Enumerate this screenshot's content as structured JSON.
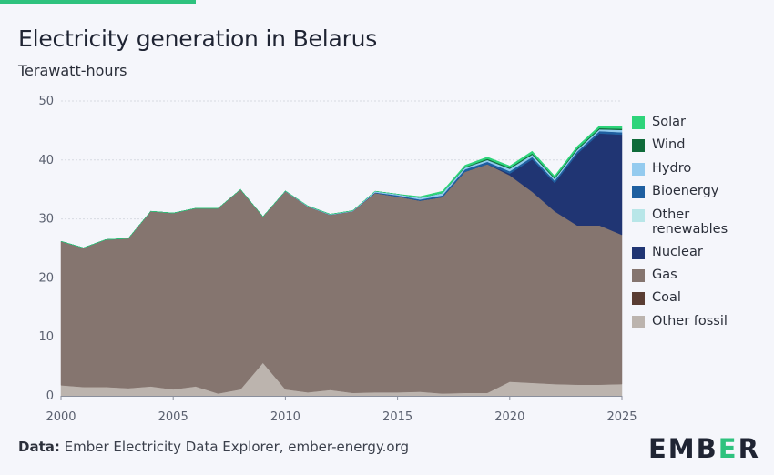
{
  "title": "Electricity generation in Belarus",
  "subtitle": "Terawatt-hours",
  "footer": {
    "label": "Data:",
    "text": "Ember Electricity Data Explorer, ember-energy.org"
  },
  "logo": {
    "text_left": "EMB",
    "text_accent": "E",
    "text_right": "R"
  },
  "chart_data": {
    "type": "area",
    "stacked": true,
    "x": [
      2000,
      2001,
      2002,
      2003,
      2004,
      2005,
      2006,
      2007,
      2008,
      2009,
      2010,
      2011,
      2012,
      2013,
      2014,
      2015,
      2016,
      2017,
      2018,
      2019,
      2020,
      2021,
      2022,
      2023,
      2024,
      2025
    ],
    "xticks": [
      "2000",
      "2005",
      "2010",
      "2015",
      "2020",
      "2025"
    ],
    "yticks": [
      "0",
      "10",
      "20",
      "30",
      "40",
      "50"
    ],
    "ylim": [
      0,
      50
    ],
    "grid": true,
    "legend_position": "right",
    "series": [
      {
        "name": "Other fossil",
        "color": "#bcb4ae",
        "values": [
          1.8,
          1.5,
          1.5,
          1.3,
          1.6,
          1.1,
          1.6,
          0.4,
          1.1,
          5.6,
          1.1,
          0.6,
          1.0,
          0.5,
          0.6,
          0.6,
          0.7,
          0.4,
          0.5,
          0.5,
          2.4,
          2.2,
          2.0,
          1.9,
          1.9,
          2.0
        ]
      },
      {
        "name": "Coal",
        "color": "#5a3d33",
        "values": [
          0,
          0,
          0,
          0,
          0,
          0,
          0,
          0,
          0,
          0,
          0,
          0,
          0,
          0,
          0,
          0,
          0,
          0,
          0,
          0,
          0,
          0,
          0,
          0,
          0,
          0
        ]
      },
      {
        "name": "Gas",
        "color": "#85756f",
        "values": [
          24.4,
          23.6,
          25.0,
          25.4,
          29.7,
          29.9,
          30.2,
          31.4,
          33.9,
          24.8,
          33.6,
          31.5,
          29.7,
          30.8,
          33.8,
          33.2,
          32.4,
          33.3,
          37.5,
          38.8,
          35.0,
          32.4,
          29.3,
          27.0,
          27.0,
          25.3
        ]
      },
      {
        "name": "Other renewables",
        "color": "#b8e6e8",
        "values": [
          0,
          0,
          0,
          0,
          0,
          0,
          0,
          0,
          0,
          0,
          0,
          0,
          0,
          0,
          0,
          0,
          0,
          0,
          0,
          0,
          0,
          0,
          0,
          0,
          0,
          0
        ]
      },
      {
        "name": "Nuclear",
        "color": "#203573",
        "values": [
          0,
          0,
          0,
          0,
          0,
          0,
          0,
          0,
          0,
          0,
          0,
          0,
          0,
          0,
          0,
          0,
          0,
          0,
          0,
          0,
          0.3,
          5.5,
          4.8,
          12.1,
          15.6,
          17.0
        ]
      },
      {
        "name": "Bioenergy",
        "color": "#1e5fa0",
        "values": [
          0,
          0,
          0,
          0,
          0,
          0,
          0,
          0,
          0,
          0,
          0,
          0,
          0,
          0,
          0.1,
          0.2,
          0.2,
          0.3,
          0.4,
          0.4,
          0.4,
          0.4,
          0.4,
          0.4,
          0.4,
          0.4
        ]
      },
      {
        "name": "Hydro",
        "color": "#94cbef",
        "values": [
          0,
          0,
          0,
          0,
          0,
          0,
          0,
          0,
          0,
          0,
          0.05,
          0.1,
          0.1,
          0.1,
          0.2,
          0.2,
          0.3,
          0.4,
          0.3,
          0.3,
          0.4,
          0.4,
          0.3,
          0.3,
          0.3,
          0.4
        ]
      },
      {
        "name": "Wind",
        "color": "#0f6b3a",
        "values": [
          0,
          0,
          0,
          0,
          0,
          0,
          0,
          0,
          0,
          0,
          0,
          0,
          0,
          0,
          0,
          0,
          0,
          0,
          0.1,
          0.2,
          0.2,
          0.2,
          0.2,
          0.2,
          0.2,
          0.2
        ]
      },
      {
        "name": "Solar",
        "color": "#2ed47a",
        "values": [
          0,
          0,
          0,
          0,
          0,
          0,
          0,
          0,
          0,
          0,
          0,
          0,
          0,
          0,
          0,
          0,
          0.2,
          0.3,
          0.3,
          0.3,
          0.3,
          0.4,
          0.3,
          0.4,
          0.4,
          0.4
        ]
      }
    ],
    "legend_order": [
      "Solar",
      "Wind",
      "Hydro",
      "Bioenergy",
      "Other renewables",
      "Nuclear",
      "Gas",
      "Coal",
      "Other fossil"
    ]
  }
}
